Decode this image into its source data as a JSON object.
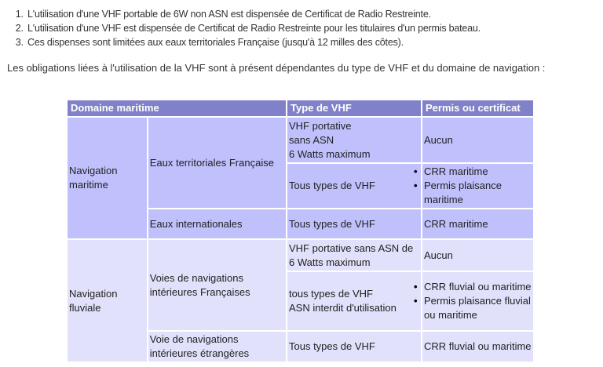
{
  "notes": [
    "L'utilisation d'une VHF portable de 6W non ASN est dispensée de Certificat de Radio Restreinte.",
    "L'utilisation d'une VHF est dispensée de Certificat de Radio Restreinte pour les titulaires d'un permis bateau.",
    "Ces dispenses sont limitées aux eaux territoriales Française (jusqu'à 12 milles des côtes)."
  ],
  "intro": "Les obligations liées à l'utilisation de la VHF sont à présent dépendantes du type de VHF et du domaine de navigation :",
  "table": {
    "headers": [
      "Domaine maritime",
      "Type de VHF",
      "Permis ou certificat"
    ],
    "maritime": {
      "domain": "Navigation maritime",
      "zone1": "Eaux territoriales Française",
      "r1_type": [
        "VHF portative",
        "sans ASN",
        "6 Watts maximum"
      ],
      "r1_permit": "Aucun",
      "r2_type": "Tous types de VHF",
      "r2_permits": [
        "CRR maritime",
        "Permis plaisance maritime"
      ],
      "zone2": "Eaux internationales",
      "r3_type": "Tous types de VHF",
      "r3_permit": "CRR maritime"
    },
    "fluvial": {
      "domain": "Navigation fluviale",
      "zone1": "Voies de navigations intérieures Françaises",
      "r1_type": "VHF portative sans ASN de 6 Watts maximum",
      "r1_permit": "Aucun",
      "r2_type": [
        "tous types de VHF",
        "ASN interdit d'utilisation"
      ],
      "r2_permits": [
        "CRR fluvial ou maritime",
        "Permis plaisance fluvial ou maritime"
      ],
      "zone2": "Voie de navigations intérieures étrangères",
      "r3_type": "Tous types de VHF",
      "r3_permit": "CRR fluvial ou maritime"
    }
  },
  "colors": {
    "header": "#8181c9",
    "maritime": "#c0c0fd",
    "fluvial": "#e1e1fb"
  }
}
